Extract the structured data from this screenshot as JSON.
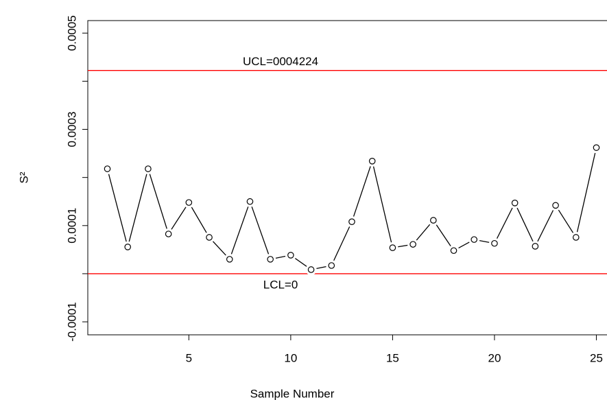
{
  "chart_data": {
    "type": "line",
    "xlabel": "Sample Number",
    "ylabel": "S²",
    "x": [
      1,
      2,
      3,
      4,
      5,
      6,
      7,
      8,
      9,
      10,
      11,
      12,
      13,
      14,
      15,
      16,
      17,
      18,
      19,
      20,
      21,
      22,
      23,
      24,
      25
    ],
    "series": [
      {
        "color": "#000000",
        "values": [
          0.000218,
          5.56e-05,
          0.000218,
          8.26e-05,
          0.000148,
          7.55e-05,
          3e-05,
          0.00015,
          3e-05,
          3.85e-05,
          8.5e-06,
          1.7e-05,
          0.000108,
          0.000234,
          5.4e-05,
          6.1e-05,
          0.000111,
          4.8e-05,
          7.1e-05,
          6.3e-05,
          0.000147,
          5.7e-05,
          0.000142,
          7.55e-05,
          0.000262
        ]
      }
    ],
    "control_limits": [
      {
        "value": 0.0004224,
        "label": "UCL=0004224",
        "color": "#ff0000"
      },
      {
        "value": 0,
        "label": "LCL=0",
        "color": "#ff0000"
      }
    ],
    "xlim": [
      0.04,
      25.96
    ],
    "ylim": [
      -0.000127,
      0.000526
    ],
    "xticks": [
      5,
      10,
      15,
      20,
      25
    ],
    "yticks": [
      -0.0001,
      {
        "value": 0,
        "label": null
      },
      0.0001,
      {
        "value": 0.0002,
        "label": null
      },
      0.0003,
      {
        "value": 0.0004,
        "label": null
      },
      0.0005
    ],
    "grid": false
  }
}
